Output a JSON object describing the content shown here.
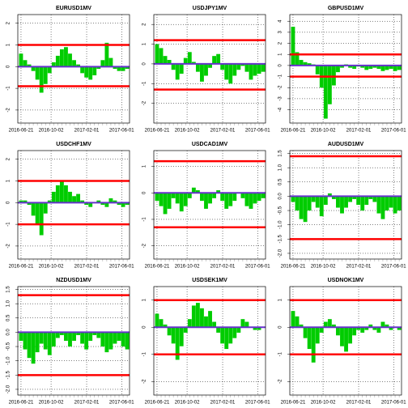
{
  "chart_data": [
    {
      "type": "bar",
      "title": "EURUSD1MV",
      "x": [
        "2016-06-21",
        "2016-07-05",
        "2016-07-19",
        "2016-08-02",
        "2016-08-16",
        "2016-08-30",
        "2016-09-13",
        "2016-09-27",
        "2016-10-11",
        "2016-10-25",
        "2016-11-08",
        "2016-11-22",
        "2016-12-06",
        "2016-12-20",
        "2017-01-03",
        "2017-01-17",
        "2017-01-31",
        "2017-02-14",
        "2017-02-28",
        "2017-03-14",
        "2017-03-28",
        "2017-04-11",
        "2017-04-25",
        "2017-05-09",
        "2017-05-23",
        "2017-06-06",
        "2017-06-20"
      ],
      "values": [
        0.6,
        0.3,
        0.1,
        -0.2,
        -0.6,
        -1.2,
        -0.8,
        -0.3,
        0.2,
        0.5,
        0.8,
        0.9,
        0.6,
        0.3,
        0.1,
        -0.3,
        -0.5,
        -0.6,
        -0.4,
        -0.1,
        0.3,
        1.1,
        0.4,
        -0.1,
        -0.2,
        -0.2,
        -0.1
      ],
      "color": "#00cc00",
      "band": [
        1,
        -0.9
      ],
      "band_color": "#ff0000",
      "zero_color": "#6633cc",
      "xlim": [
        "2016-06-10",
        "2017-06-28"
      ],
      "xticks": [
        "2016-06-21",
        "2016-10-02",
        "2017-02-01",
        "2017-06-01"
      ],
      "ylim": [
        -2.6,
        2.4
      ],
      "yticks": [
        -2,
        -1,
        0,
        1,
        2
      ],
      "grid": true
    },
    {
      "type": "bar",
      "title": "USDJPY1MV",
      "x": [
        "2016-06-21",
        "2016-07-05",
        "2016-07-19",
        "2016-08-02",
        "2016-08-16",
        "2016-08-30",
        "2016-09-13",
        "2016-09-27",
        "2016-10-11",
        "2016-10-25",
        "2016-11-08",
        "2016-11-22",
        "2016-12-06",
        "2016-12-20",
        "2017-01-03",
        "2017-01-17",
        "2017-01-31",
        "2017-02-14",
        "2017-02-28",
        "2017-03-14",
        "2017-03-28",
        "2017-04-11",
        "2017-04-25",
        "2017-05-09",
        "2017-05-23",
        "2017-06-06",
        "2017-06-20"
      ],
      "values": [
        1.0,
        0.8,
        0.4,
        0.2,
        -0.3,
        -0.8,
        -0.5,
        0.3,
        0.6,
        0.1,
        -0.4,
        -0.9,
        -0.6,
        -0.2,
        0.4,
        0.5,
        -0.3,
        -0.8,
        -1.0,
        -0.6,
        -0.3,
        -0.1,
        -0.4,
        -0.8,
        -0.6,
        -0.5,
        -0.4
      ],
      "color": "#00cc00",
      "band": [
        1.2,
        -1.3
      ],
      "band_color": "#ff0000",
      "zero_color": "#6633cc",
      "xlim": [
        "2016-06-10",
        "2017-06-28"
      ],
      "xticks": [
        "2016-06-21",
        "2016-10-02",
        "2017-02-01",
        "2017-06-01"
      ],
      "ylim": [
        -3,
        2.5
      ],
      "yticks": [
        -2,
        -1,
        0,
        1,
        2
      ],
      "grid": true
    },
    {
      "type": "bar",
      "title": "GBPUSD1MV",
      "x": [
        "2016-06-21",
        "2016-07-05",
        "2016-07-19",
        "2016-08-02",
        "2016-08-16",
        "2016-08-30",
        "2016-09-13",
        "2016-09-27",
        "2016-10-11",
        "2016-10-25",
        "2016-11-08",
        "2016-11-22",
        "2016-12-06",
        "2016-12-20",
        "2017-01-03",
        "2017-01-17",
        "2017-01-31",
        "2017-02-14",
        "2017-02-28",
        "2017-03-14",
        "2017-03-28",
        "2017-04-11",
        "2017-04-25",
        "2017-05-09",
        "2017-05-23",
        "2017-06-06",
        "2017-06-20"
      ],
      "values": [
        3.5,
        1.2,
        0.5,
        0.3,
        0.2,
        0.1,
        -0.8,
        -2.0,
        -4.8,
        -3.5,
        -1.8,
        -0.6,
        -0.2,
        0.1,
        -0.2,
        -0.3,
        -0.1,
        -0.2,
        -0.4,
        -0.3,
        -0.2,
        -0.3,
        -0.5,
        -0.4,
        -0.3,
        -0.5,
        -0.4
      ],
      "color": "#00cc00",
      "band": [
        1,
        -1
      ],
      "band_color": "#ff0000",
      "zero_color": "#6633cc",
      "xlim": [
        "2016-06-10",
        "2017-06-28"
      ],
      "xticks": [
        "2016-06-21",
        "2016-10-02",
        "2017-02-01",
        "2017-06-01"
      ],
      "ylim": [
        -5.2,
        4.6
      ],
      "yticks": [
        -4,
        -3,
        -2,
        -1,
        0,
        1,
        2,
        3,
        4
      ],
      "grid": true
    },
    {
      "type": "bar",
      "title": "USDCHF1MV",
      "x": [
        "2016-06-21",
        "2016-07-05",
        "2016-07-19",
        "2016-08-02",
        "2016-08-16",
        "2016-08-30",
        "2016-09-13",
        "2016-09-27",
        "2016-10-11",
        "2016-10-25",
        "2016-11-08",
        "2016-11-22",
        "2016-12-06",
        "2016-12-20",
        "2017-01-03",
        "2017-01-17",
        "2017-01-31",
        "2017-02-14",
        "2017-02-28",
        "2017-03-14",
        "2017-03-28",
        "2017-04-11",
        "2017-04-25",
        "2017-05-09",
        "2017-05-23",
        "2017-06-06",
        "2017-06-20"
      ],
      "values": [
        0.1,
        0.1,
        -0.1,
        -0.6,
        -1.0,
        -1.5,
        -0.5,
        0.1,
        0.5,
        0.8,
        1.0,
        0.8,
        0.5,
        0.3,
        0.4,
        0.1,
        -0.1,
        -0.2,
        0.0,
        0.1,
        -0.1,
        -0.2,
        0.2,
        0.1,
        -0.1,
        -0.2,
        -0.1
      ],
      "color": "#00cc00",
      "band": [
        1,
        -1
      ],
      "band_color": "#ff0000",
      "zero_color": "#6633cc",
      "xlim": [
        "2016-06-10",
        "2017-06-28"
      ],
      "xticks": [
        "2016-06-21",
        "2016-10-02",
        "2017-02-01",
        "2017-06-01"
      ],
      "ylim": [
        -2.6,
        2.4
      ],
      "yticks": [
        -2,
        -1,
        0,
        1,
        2
      ],
      "grid": true
    },
    {
      "type": "bar",
      "title": "USDCAD1MV",
      "x": [
        "2016-06-21",
        "2016-07-05",
        "2016-07-19",
        "2016-08-02",
        "2016-08-16",
        "2016-08-30",
        "2016-09-13",
        "2016-09-27",
        "2016-10-11",
        "2016-10-25",
        "2016-11-08",
        "2016-11-22",
        "2016-12-06",
        "2016-12-20",
        "2017-01-03",
        "2017-01-17",
        "2017-01-31",
        "2017-02-14",
        "2017-02-28",
        "2017-03-14",
        "2017-03-28",
        "2017-04-11",
        "2017-04-25",
        "2017-05-09",
        "2017-05-23",
        "2017-06-06",
        "2017-06-20"
      ],
      "values": [
        -0.3,
        -0.5,
        -0.8,
        -0.6,
        -0.2,
        -0.4,
        -0.7,
        -0.5,
        -0.2,
        0.2,
        0.1,
        -0.3,
        -0.6,
        -0.4,
        -0.2,
        0.1,
        -0.3,
        -0.6,
        -0.5,
        -0.3,
        0.0,
        -0.2,
        -0.5,
        -0.6,
        -0.4,
        -0.3,
        -0.2
      ],
      "color": "#00cc00",
      "band": [
        1.2,
        -1.3
      ],
      "band_color": "#ff0000",
      "zero_color": "#6633cc",
      "xlim": [
        "2016-06-10",
        "2017-06-28"
      ],
      "xticks": [
        "2016-06-21",
        "2016-10-02",
        "2017-02-01",
        "2017-06-01"
      ],
      "ylim": [
        -2.5,
        1.6
      ],
      "yticks": [
        -2,
        -1,
        0,
        1
      ],
      "grid": true
    },
    {
      "type": "bar",
      "title": "AUDUSD1MV",
      "x": [
        "2016-06-21",
        "2016-07-05",
        "2016-07-19",
        "2016-08-02",
        "2016-08-16",
        "2016-08-30",
        "2016-09-13",
        "2016-09-27",
        "2016-10-11",
        "2016-10-25",
        "2016-11-08",
        "2016-11-22",
        "2016-12-06",
        "2016-12-20",
        "2017-01-03",
        "2017-01-17",
        "2017-01-31",
        "2017-02-14",
        "2017-02-28",
        "2017-03-14",
        "2017-03-28",
        "2017-04-11",
        "2017-04-25",
        "2017-05-09",
        "2017-05-23",
        "2017-06-06",
        "2017-06-20"
      ],
      "values": [
        -0.2,
        -0.5,
        -0.8,
        -0.9,
        -0.5,
        -0.2,
        -0.4,
        -0.7,
        -0.3,
        0.1,
        -0.1,
        -0.4,
        -0.6,
        -0.4,
        -0.2,
        -0.1,
        -0.3,
        -0.5,
        -0.3,
        -0.1,
        -0.2,
        -0.6,
        -0.8,
        -0.5,
        -0.4,
        -0.6,
        -0.5
      ],
      "color": "#00cc00",
      "band": [
        1.4,
        -1.5
      ],
      "band_color": "#ff0000",
      "zero_color": "#6633cc",
      "xlim": [
        "2016-06-10",
        "2017-06-28"
      ],
      "xticks": [
        "2016-06-21",
        "2016-10-02",
        "2017-02-01",
        "2017-06-01"
      ],
      "ylim": [
        -2.2,
        1.6
      ],
      "yticks": [
        {
          "value": -2,
          "label": "-2.0"
        },
        -1.5,
        {
          "value": -1,
          "label": "-1.0"
        },
        -0.5,
        {
          "value": 0,
          "label": "0.0"
        },
        0.5,
        {
          "value": 1,
          "label": "1.0"
        },
        1.5
      ],
      "grid": true
    },
    {
      "type": "bar",
      "title": "NZDUSD1MV",
      "x": [
        "2016-06-21",
        "2016-07-05",
        "2016-07-19",
        "2016-08-02",
        "2016-08-16",
        "2016-08-30",
        "2016-09-13",
        "2016-09-27",
        "2016-10-11",
        "2016-10-25",
        "2016-11-08",
        "2016-11-22",
        "2016-12-06",
        "2016-12-20",
        "2017-01-03",
        "2017-01-17",
        "2017-01-31",
        "2017-02-14",
        "2017-02-28",
        "2017-03-14",
        "2017-03-28",
        "2017-04-11",
        "2017-04-25",
        "2017-05-09",
        "2017-05-23",
        "2017-06-06",
        "2017-06-20"
      ],
      "values": [
        -0.3,
        -0.6,
        -0.9,
        -1.1,
        -0.7,
        -0.4,
        -0.6,
        -0.8,
        -0.5,
        -0.2,
        -0.1,
        -0.3,
        -0.5,
        -0.3,
        -0.1,
        -0.4,
        -0.6,
        -0.3,
        -0.1,
        -0.2,
        -0.5,
        -0.7,
        -0.6,
        -0.4,
        -0.3,
        -0.5,
        -0.6
      ],
      "color": "#00cc00",
      "band": [
        1.3,
        -1.5
      ],
      "band_color": "#ff0000",
      "zero_color": "#6633cc",
      "xlim": [
        "2016-06-10",
        "2017-06-28"
      ],
      "xticks": [
        "2016-06-21",
        "2016-10-02",
        "2017-02-01",
        "2017-06-01"
      ],
      "ylim": [
        -2.2,
        1.6
      ],
      "yticks": [
        {
          "value": -2,
          "label": "-2.0"
        },
        -1.5,
        {
          "value": -1,
          "label": "-1.0"
        },
        -0.5,
        {
          "value": 0,
          "label": "0.0"
        },
        0.5,
        {
          "value": 1,
          "label": "1.0"
        },
        1.5
      ],
      "grid": true
    },
    {
      "type": "bar",
      "title": "USDSEK1MV",
      "x": [
        "2016-06-21",
        "2016-07-05",
        "2016-07-19",
        "2016-08-02",
        "2016-08-16",
        "2016-08-30",
        "2016-09-13",
        "2016-09-27",
        "2016-10-11",
        "2016-10-25",
        "2016-11-08",
        "2016-11-22",
        "2016-12-06",
        "2016-12-20",
        "2017-01-03",
        "2017-01-17",
        "2017-01-31",
        "2017-02-14",
        "2017-02-28",
        "2017-03-14",
        "2017-03-28",
        "2017-04-11",
        "2017-04-25",
        "2017-05-09",
        "2017-05-23",
        "2017-06-06",
        "2017-06-20"
      ],
      "values": [
        0.5,
        0.3,
        0.1,
        -0.3,
        -0.6,
        -1.2,
        -0.7,
        -0.2,
        0.3,
        0.8,
        0.9,
        0.7,
        0.4,
        0.6,
        0.2,
        -0.2,
        -0.6,
        -0.8,
        -0.6,
        -0.4,
        -0.2,
        0.3,
        0.2,
        0.0,
        -0.1,
        -0.1,
        0.0
      ],
      "color": "#00cc00",
      "band": [
        1,
        -1
      ],
      "band_color": "#ff0000",
      "zero_color": "#6633cc",
      "xlim": [
        "2016-06-10",
        "2017-06-28"
      ],
      "xticks": [
        "2016-06-21",
        "2016-10-02",
        "2017-02-01",
        "2017-06-01"
      ],
      "ylim": [
        -2.5,
        1.5
      ],
      "yticks": [
        -2,
        -1,
        0,
        1
      ],
      "grid": true
    },
    {
      "type": "bar",
      "title": "USDNOK1MV",
      "x": [
        "2016-06-21",
        "2016-07-05",
        "2016-07-19",
        "2016-08-02",
        "2016-08-16",
        "2016-08-30",
        "2016-09-13",
        "2016-09-27",
        "2016-10-11",
        "2016-10-25",
        "2016-11-08",
        "2016-11-22",
        "2016-12-06",
        "2016-12-20",
        "2017-01-03",
        "2017-01-17",
        "2017-01-31",
        "2017-02-14",
        "2017-02-28",
        "2017-03-14",
        "2017-03-28",
        "2017-04-11",
        "2017-04-25",
        "2017-05-09",
        "2017-05-23",
        "2017-06-06",
        "2017-06-20"
      ],
      "values": [
        0.6,
        0.4,
        0.1,
        -0.4,
        -0.8,
        -1.3,
        -0.6,
        -0.2,
        0.2,
        0.3,
        0.1,
        -0.3,
        -0.7,
        -0.9,
        -0.6,
        -0.3,
        -0.1,
        -0.2,
        -0.1,
        0.1,
        -0.1,
        -0.2,
        0.2,
        0.1,
        -0.1,
        0.0,
        -0.1
      ],
      "color": "#00cc00",
      "band": [
        1,
        -1
      ],
      "band_color": "#ff0000",
      "zero_color": "#6633cc",
      "xlim": [
        "2016-06-10",
        "2017-06-28"
      ],
      "xticks": [
        "2016-06-21",
        "2016-10-02",
        "2017-02-01",
        "2017-06-01"
      ],
      "ylim": [
        -2.5,
        1.5
      ],
      "yticks": [
        -2,
        -1,
        0,
        1
      ],
      "grid": true
    }
  ]
}
